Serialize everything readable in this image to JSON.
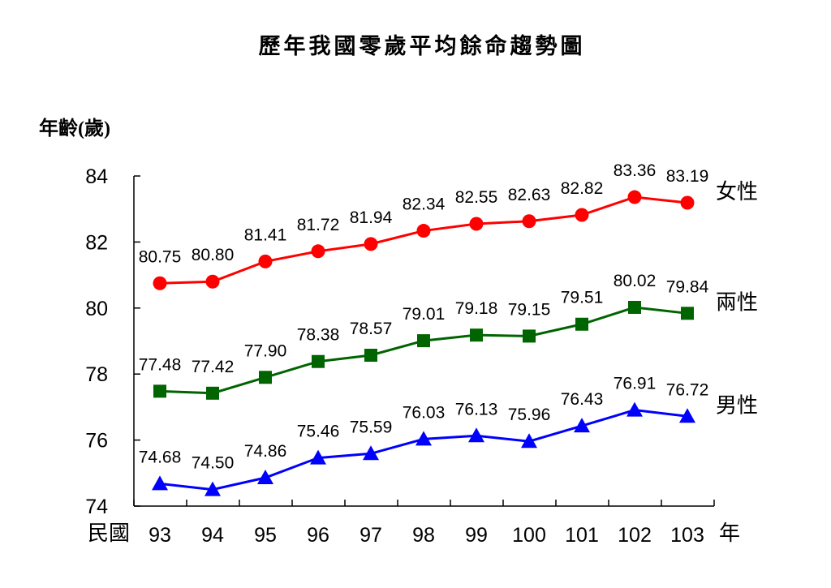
{
  "chart_data": {
    "type": "line",
    "title": "歷年我國零歲平均餘命趨勢圖",
    "ylabel": "年齡(歲)",
    "x_prefix": "民國",
    "x_suffix": "年",
    "categories": [
      "93",
      "94",
      "95",
      "96",
      "97",
      "98",
      "99",
      "100",
      "101",
      "102",
      "103"
    ],
    "ylim": [
      74,
      84
    ],
    "yticks": [
      74,
      76,
      78,
      80,
      82,
      84
    ],
    "grid": false,
    "series": [
      {
        "name": "女性",
        "color": "#ff0000",
        "marker": "circle",
        "values": [
          80.75,
          80.8,
          81.41,
          81.72,
          81.94,
          82.34,
          82.55,
          82.63,
          82.82,
          83.36,
          83.19
        ],
        "labels": [
          "80.75",
          "80.80",
          "81.41",
          "81.72",
          "81.94",
          "82.34",
          "82.55",
          "82.63",
          "82.82",
          "83.36",
          "83.19"
        ]
      },
      {
        "name": "兩性",
        "color": "#006400",
        "marker": "square",
        "values": [
          77.48,
          77.42,
          77.9,
          78.38,
          78.57,
          79.01,
          79.18,
          79.15,
          79.51,
          80.02,
          79.84
        ],
        "labels": [
          "77.48",
          "77.42",
          "77.90",
          "78.38",
          "78.57",
          "79.01",
          "79.18",
          "79.15",
          "79.51",
          "80.02",
          "79.84"
        ]
      },
      {
        "name": "男性",
        "color": "#0000ff",
        "marker": "triangle",
        "values": [
          74.68,
          74.5,
          74.86,
          75.46,
          75.59,
          76.03,
          76.13,
          75.96,
          76.43,
          76.91,
          76.72
        ],
        "labels": [
          "74.68",
          "74.50",
          "74.86",
          "75.46",
          "75.59",
          "76.03",
          "76.13",
          "75.96",
          "76.43",
          "76.91",
          "76.72"
        ]
      }
    ]
  }
}
